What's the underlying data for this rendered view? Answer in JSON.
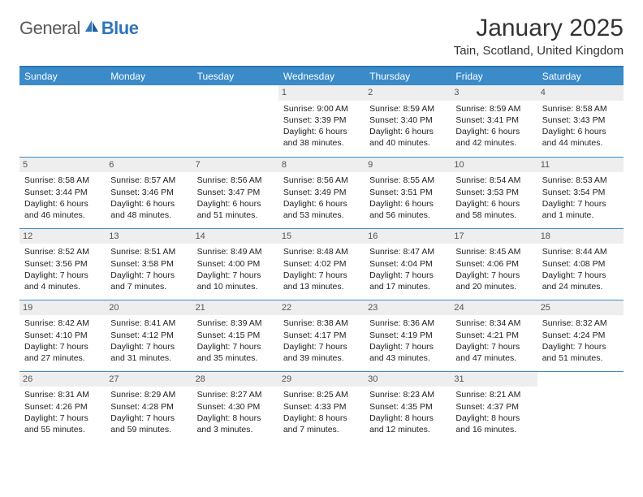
{
  "logo": {
    "part1": "General",
    "part2": "Blue"
  },
  "title": "January 2025",
  "location": "Tain, Scotland, United Kingdom",
  "colors": {
    "header_bg": "#3b8bc9",
    "header_text": "#ffffff",
    "border": "#3b8bc9",
    "daynum_bg": "#eeeeee",
    "text": "#222222",
    "logo_gray": "#5a5a5a",
    "logo_blue": "#2e75b6",
    "page_bg": "#ffffff"
  },
  "typography": {
    "title_fontsize": 30,
    "location_fontsize": 15,
    "dayheader_fontsize": 12,
    "cell_fontsize": 10.5
  },
  "day_headers": [
    "Sunday",
    "Monday",
    "Tuesday",
    "Wednesday",
    "Thursday",
    "Friday",
    "Saturday"
  ],
  "weeks": [
    [
      null,
      null,
      null,
      {
        "n": "1",
        "sunrise": "9:00 AM",
        "sunset": "3:39 PM",
        "daylight": "6 hours and 38 minutes."
      },
      {
        "n": "2",
        "sunrise": "8:59 AM",
        "sunset": "3:40 PM",
        "daylight": "6 hours and 40 minutes."
      },
      {
        "n": "3",
        "sunrise": "8:59 AM",
        "sunset": "3:41 PM",
        "daylight": "6 hours and 42 minutes."
      },
      {
        "n": "4",
        "sunrise": "8:58 AM",
        "sunset": "3:43 PM",
        "daylight": "6 hours and 44 minutes."
      }
    ],
    [
      {
        "n": "5",
        "sunrise": "8:58 AM",
        "sunset": "3:44 PM",
        "daylight": "6 hours and 46 minutes."
      },
      {
        "n": "6",
        "sunrise": "8:57 AM",
        "sunset": "3:46 PM",
        "daylight": "6 hours and 48 minutes."
      },
      {
        "n": "7",
        "sunrise": "8:56 AM",
        "sunset": "3:47 PM",
        "daylight": "6 hours and 51 minutes."
      },
      {
        "n": "8",
        "sunrise": "8:56 AM",
        "sunset": "3:49 PM",
        "daylight": "6 hours and 53 minutes."
      },
      {
        "n": "9",
        "sunrise": "8:55 AM",
        "sunset": "3:51 PM",
        "daylight": "6 hours and 56 minutes."
      },
      {
        "n": "10",
        "sunrise": "8:54 AM",
        "sunset": "3:53 PM",
        "daylight": "6 hours and 58 minutes."
      },
      {
        "n": "11",
        "sunrise": "8:53 AM",
        "sunset": "3:54 PM",
        "daylight": "7 hours and 1 minute."
      }
    ],
    [
      {
        "n": "12",
        "sunrise": "8:52 AM",
        "sunset": "3:56 PM",
        "daylight": "7 hours and 4 minutes."
      },
      {
        "n": "13",
        "sunrise": "8:51 AM",
        "sunset": "3:58 PM",
        "daylight": "7 hours and 7 minutes."
      },
      {
        "n": "14",
        "sunrise": "8:49 AM",
        "sunset": "4:00 PM",
        "daylight": "7 hours and 10 minutes."
      },
      {
        "n": "15",
        "sunrise": "8:48 AM",
        "sunset": "4:02 PM",
        "daylight": "7 hours and 13 minutes."
      },
      {
        "n": "16",
        "sunrise": "8:47 AM",
        "sunset": "4:04 PM",
        "daylight": "7 hours and 17 minutes."
      },
      {
        "n": "17",
        "sunrise": "8:45 AM",
        "sunset": "4:06 PM",
        "daylight": "7 hours and 20 minutes."
      },
      {
        "n": "18",
        "sunrise": "8:44 AM",
        "sunset": "4:08 PM",
        "daylight": "7 hours and 24 minutes."
      }
    ],
    [
      {
        "n": "19",
        "sunrise": "8:42 AM",
        "sunset": "4:10 PM",
        "daylight": "7 hours and 27 minutes."
      },
      {
        "n": "20",
        "sunrise": "8:41 AM",
        "sunset": "4:12 PM",
        "daylight": "7 hours and 31 minutes."
      },
      {
        "n": "21",
        "sunrise": "8:39 AM",
        "sunset": "4:15 PM",
        "daylight": "7 hours and 35 minutes."
      },
      {
        "n": "22",
        "sunrise": "8:38 AM",
        "sunset": "4:17 PM",
        "daylight": "7 hours and 39 minutes."
      },
      {
        "n": "23",
        "sunrise": "8:36 AM",
        "sunset": "4:19 PM",
        "daylight": "7 hours and 43 minutes."
      },
      {
        "n": "24",
        "sunrise": "8:34 AM",
        "sunset": "4:21 PM",
        "daylight": "7 hours and 47 minutes."
      },
      {
        "n": "25",
        "sunrise": "8:32 AM",
        "sunset": "4:24 PM",
        "daylight": "7 hours and 51 minutes."
      }
    ],
    [
      {
        "n": "26",
        "sunrise": "8:31 AM",
        "sunset": "4:26 PM",
        "daylight": "7 hours and 55 minutes."
      },
      {
        "n": "27",
        "sunrise": "8:29 AM",
        "sunset": "4:28 PM",
        "daylight": "7 hours and 59 minutes."
      },
      {
        "n": "28",
        "sunrise": "8:27 AM",
        "sunset": "4:30 PM",
        "daylight": "8 hours and 3 minutes."
      },
      {
        "n": "29",
        "sunrise": "8:25 AM",
        "sunset": "4:33 PM",
        "daylight": "8 hours and 7 minutes."
      },
      {
        "n": "30",
        "sunrise": "8:23 AM",
        "sunset": "4:35 PM",
        "daylight": "8 hours and 12 minutes."
      },
      {
        "n": "31",
        "sunrise": "8:21 AM",
        "sunset": "4:37 PM",
        "daylight": "8 hours and 16 minutes."
      },
      null
    ]
  ],
  "labels": {
    "sunrise": "Sunrise: ",
    "sunset": "Sunset: ",
    "daylight": "Daylight: "
  }
}
